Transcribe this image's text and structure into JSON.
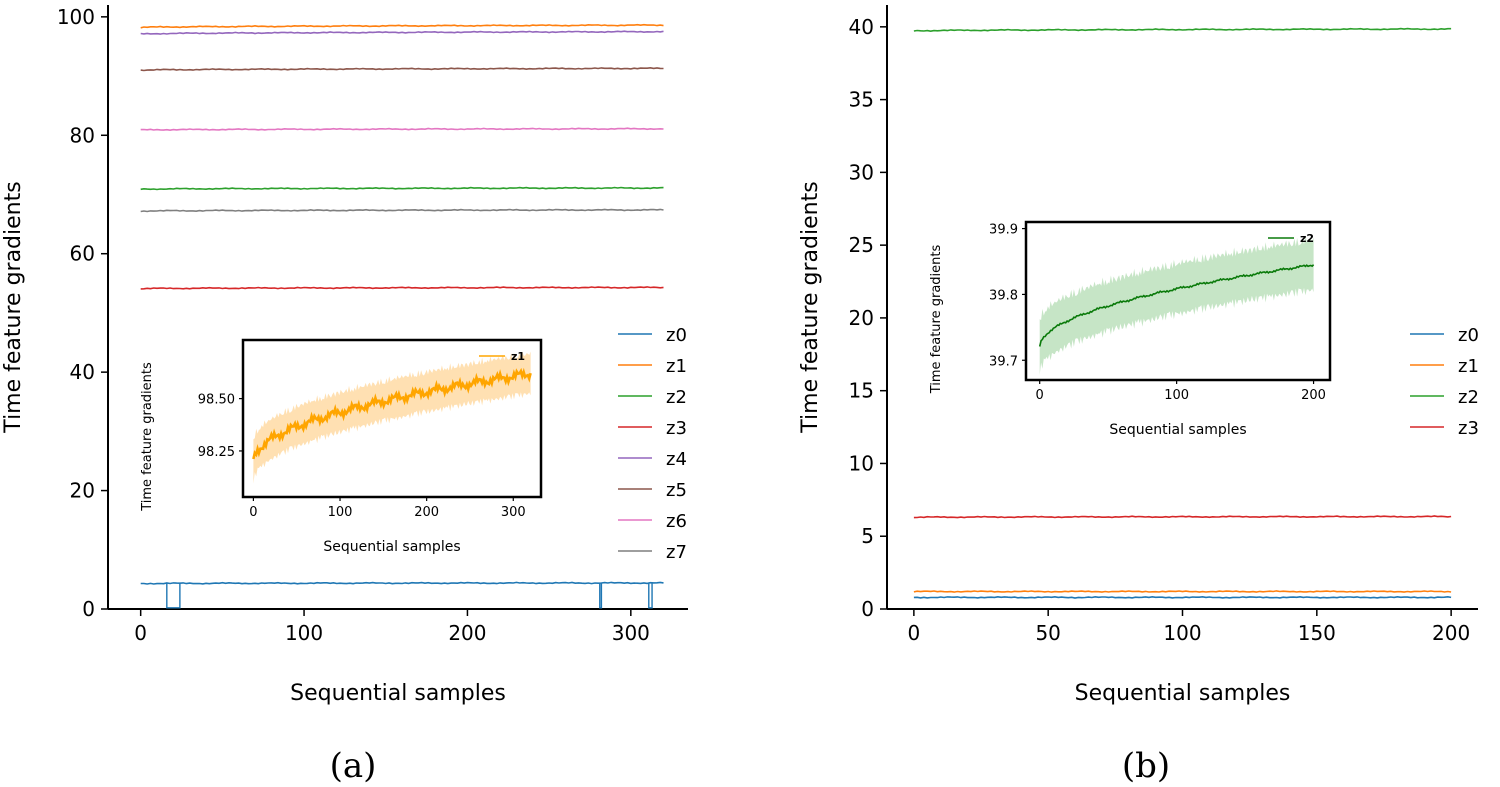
{
  "chart_data": [
    {
      "type": "line",
      "panel": "(a)",
      "xlabel": "Sequential samples",
      "ylabel": "Time feature gradients",
      "xlim": [
        -20,
        335
      ],
      "ylim": [
        0,
        102
      ],
      "xticks": [
        0,
        100,
        200,
        300
      ],
      "yticks": [
        0,
        20,
        40,
        60,
        80,
        100
      ],
      "x_range": [
        0,
        320
      ],
      "series": [
        {
          "name": "z0",
          "color": "#1f77b4",
          "start": 4.3,
          "end": 4.4,
          "dips": [
            {
              "x": 16,
              "w": 8
            },
            {
              "x": 281,
              "w": 1
            },
            {
              "x": 311,
              "w": 2
            }
          ],
          "dip_to": 0.2
        },
        {
          "name": "z1",
          "color": "#ff7f0e",
          "start": 98.2,
          "end": 98.6
        },
        {
          "name": "z2",
          "color": "#2ca02c",
          "start": 70.9,
          "end": 71.1
        },
        {
          "name": "z3",
          "color": "#d62728",
          "start": 54.1,
          "end": 54.3
        },
        {
          "name": "z4",
          "color": "#9467bd",
          "start": 97.1,
          "end": 97.5
        },
        {
          "name": "z5",
          "color": "#8c564b",
          "start": 91.0,
          "end": 91.3
        },
        {
          "name": "z6",
          "color": "#e377c2",
          "start": 80.9,
          "end": 81.1
        },
        {
          "name": "z7",
          "color": "#7f7f7f",
          "start": 67.2,
          "end": 67.4
        }
      ],
      "legend": [
        "z0",
        "z1",
        "z2",
        "z3",
        "z4",
        "z5",
        "z6",
        "z7"
      ],
      "legend_position": "right",
      "inset": {
        "xlabel": "Sequential samples",
        "ylabel": "Time feature gradients",
        "xlim": [
          -12,
          332
        ],
        "ylim": [
          98.03,
          98.78
        ],
        "xticks": [
          0,
          100,
          200,
          300
        ],
        "yticks": [
          98.25,
          98.5
        ],
        "ytick_labels": [
          "98.25",
          "98.50"
        ],
        "series": {
          "name": "z1",
          "color": "#ffa500",
          "band_color": "#ffe0b2",
          "start": 98.2,
          "end": 98.62,
          "x_end": 320,
          "band_half_width": 0.1
        },
        "legend_position": "upper right"
      }
    },
    {
      "type": "line",
      "panel": "(b)",
      "xlabel": "Sequential samples",
      "ylabel": "Time feature gradients",
      "xlim": [
        -10,
        210
      ],
      "ylim": [
        0,
        41.5
      ],
      "xticks": [
        0,
        50,
        100,
        150,
        200
      ],
      "yticks": [
        0,
        5,
        10,
        15,
        20,
        25,
        30,
        35,
        40
      ],
      "x_range": [
        0,
        200
      ],
      "series": [
        {
          "name": "z0",
          "color": "#1f77b4",
          "start": 0.8,
          "end": 0.8
        },
        {
          "name": "z1",
          "color": "#ff7f0e",
          "start": 1.2,
          "end": 1.2
        },
        {
          "name": "z2",
          "color": "#2ca02c",
          "start": 39.72,
          "end": 39.85
        },
        {
          "name": "z3",
          "color": "#d62728",
          "start": 6.3,
          "end": 6.35
        }
      ],
      "legend": [
        "z0",
        "z1",
        "z2",
        "z3"
      ],
      "legend_position": "right",
      "inset": {
        "xlabel": "Sequential samples",
        "ylabel": "Time feature gradients",
        "xlim": [
          -10,
          212
        ],
        "ylim": [
          39.67,
          39.91
        ],
        "xticks": [
          0,
          100,
          200
        ],
        "yticks": [
          39.7,
          39.8,
          39.9
        ],
        "ytick_labels": [
          "39.7",
          "39.8",
          "39.9"
        ],
        "series": {
          "name": "z2",
          "color": "#0a7a0a",
          "band_color": "#c6e5c6",
          "start": 39.72,
          "end": 39.845,
          "x_end": 200,
          "band_half_width": 0.04
        },
        "legend_position": "upper right"
      }
    }
  ],
  "captions": {
    "a": "(a)",
    "b": "(b)"
  }
}
